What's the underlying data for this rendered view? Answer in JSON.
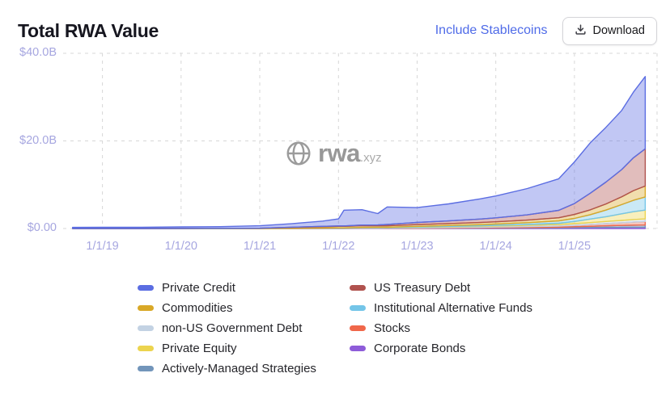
{
  "header": {
    "title": "Total RWA Value",
    "toggle_label": "Include Stablecoins",
    "download_label": "Download"
  },
  "watermark": {
    "brand": "rwa",
    "suffix": ".xyz"
  },
  "colors": {
    "accent_link": "#4f6be8",
    "axis_label": "#a6a6e0",
    "grid": "#d7d7d7"
  },
  "legend": {
    "items": [
      {
        "label": "Private Credit",
        "color": "#5b6de2"
      },
      {
        "label": "US Treasury Debt",
        "color": "#b0524e"
      },
      {
        "label": "Commodities",
        "color": "#d9a827"
      },
      {
        "label": "Institutional Alternative Funds",
        "color": "#74c5e8"
      },
      {
        "label": "non-US Government Debt",
        "color": "#c3d2e3"
      },
      {
        "label": "Stocks",
        "color": "#f0674a"
      },
      {
        "label": "Private Equity",
        "color": "#ecd44e"
      },
      {
        "label": "Corporate Bonds",
        "color": "#8e5cd9"
      },
      {
        "label": "Actively-Managed Strategies",
        "color": "#7295ba"
      }
    ]
  },
  "chart_data": {
    "type": "area",
    "stacked": true,
    "title": "Total RWA Value",
    "xlabel": "",
    "ylabel": "",
    "unit": "USD billions",
    "grid": "dashed",
    "legend_position": "bottom",
    "ylim": [
      0,
      40
    ],
    "xlim": [
      2018.5,
      2026.05
    ],
    "y_ticks": [
      "$40.0B",
      "$20.0B",
      "$0.00"
    ],
    "y_tick_values": [
      40,
      20,
      0
    ],
    "x_ticks": [
      "1/1/19",
      "1/1/20",
      "1/1/21",
      "1/1/22",
      "1/1/23",
      "1/1/24",
      "1/1/25"
    ],
    "x_tick_values": [
      2019,
      2020,
      2021,
      2022,
      2023,
      2024,
      2025
    ],
    "x": [
      2018.62,
      2019,
      2019.5,
      2020,
      2020.5,
      2021,
      2021.4,
      2021.8,
      2022,
      2022.07,
      2022.3,
      2022.5,
      2022.62,
      2023,
      2023.4,
      2023.8,
      2024,
      2024.4,
      2024.8,
      2025,
      2025.2,
      2025.4,
      2025.6,
      2025.75,
      2025.9
    ],
    "series": [
      {
        "name": "Corporate Bonds",
        "color": "#8e5cd9",
        "values": [
          0,
          0,
          0,
          0,
          0,
          0,
          0.01,
          0.02,
          0.02,
          0.02,
          0.03,
          0.03,
          0.03,
          0.05,
          0.07,
          0.09,
          0.1,
          0.12,
          0.15,
          0.2,
          0.22,
          0.25,
          0.28,
          0.29,
          0.3
        ]
      },
      {
        "name": "Actively-Managed Strategies",
        "color": "#7295ba",
        "values": [
          0,
          0,
          0,
          0,
          0,
          0,
          0,
          0,
          0,
          0,
          0,
          0,
          0,
          0,
          0.03,
          0.06,
          0.08,
          0.1,
          0.15,
          0.2,
          0.28,
          0.35,
          0.42,
          0.47,
          0.5
        ]
      },
      {
        "name": "Stocks",
        "color": "#f0674a",
        "values": [
          0,
          0,
          0,
          0,
          0,
          0,
          0.01,
          0.02,
          0.02,
          0.02,
          0.03,
          0.03,
          0.05,
          0.08,
          0.1,
          0.12,
          0.15,
          0.2,
          0.25,
          0.3,
          0.4,
          0.5,
          0.6,
          0.7,
          0.8
        ]
      },
      {
        "name": "non-US Government Debt",
        "color": "#c3d2e3",
        "values": [
          0,
          0,
          0,
          0,
          0,
          0,
          0,
          0.03,
          0.05,
          0.05,
          0.1,
          0.1,
          0.1,
          0.15,
          0.2,
          0.22,
          0.25,
          0.3,
          0.35,
          0.4,
          0.45,
          0.5,
          0.55,
          0.58,
          0.6
        ]
      },
      {
        "name": "Private Equity",
        "color": "#ecd44e",
        "values": [
          0,
          0,
          0,
          0,
          0,
          0,
          0,
          0,
          0,
          0,
          0,
          0,
          0,
          0.05,
          0.08,
          0.12,
          0.15,
          0.2,
          0.3,
          0.5,
          0.8,
          1.1,
          1.5,
          1.8,
          2.0
        ]
      },
      {
        "name": "Institutional Alternative Funds",
        "color": "#74c5e8",
        "values": [
          0,
          0,
          0,
          0,
          0,
          0,
          0.02,
          0.04,
          0.05,
          0.05,
          0.08,
          0.1,
          0.1,
          0.15,
          0.2,
          0.25,
          0.3,
          0.4,
          0.55,
          0.7,
          1.0,
          1.5,
          2.1,
          2.6,
          3.0
        ]
      },
      {
        "name": "Commodities",
        "color": "#d9a827",
        "values": [
          0,
          0,
          0,
          0.02,
          0.03,
          0.06,
          0.2,
          0.3,
          0.35,
          0.35,
          0.4,
          0.35,
          0.35,
          0.4,
          0.45,
          0.5,
          0.5,
          0.6,
          0.7,
          0.9,
          1.1,
          1.4,
          1.8,
          2.2,
          2.5
        ]
      },
      {
        "name": "US Treasury Debt",
        "color": "#b0524e",
        "values": [
          0,
          0,
          0,
          0,
          0,
          0.02,
          0.05,
          0.08,
          0.1,
          0.1,
          0.15,
          0.2,
          0.3,
          0.5,
          0.6,
          0.8,
          0.9,
          1.2,
          1.7,
          2.5,
          3.8,
          5.0,
          6.2,
          7.5,
          8.5
        ]
      },
      {
        "name": "Private Credit",
        "color": "#5b6de2",
        "values": [
          0.25,
          0.3,
          0.3,
          0.35,
          0.4,
          0.55,
          0.8,
          1.2,
          1.6,
          3.6,
          3.5,
          2.6,
          4.0,
          3.4,
          3.9,
          4.6,
          5.0,
          6.0,
          7.2,
          9.5,
          11.5,
          12.5,
          13.5,
          15.0,
          16.5
        ]
      }
    ]
  }
}
